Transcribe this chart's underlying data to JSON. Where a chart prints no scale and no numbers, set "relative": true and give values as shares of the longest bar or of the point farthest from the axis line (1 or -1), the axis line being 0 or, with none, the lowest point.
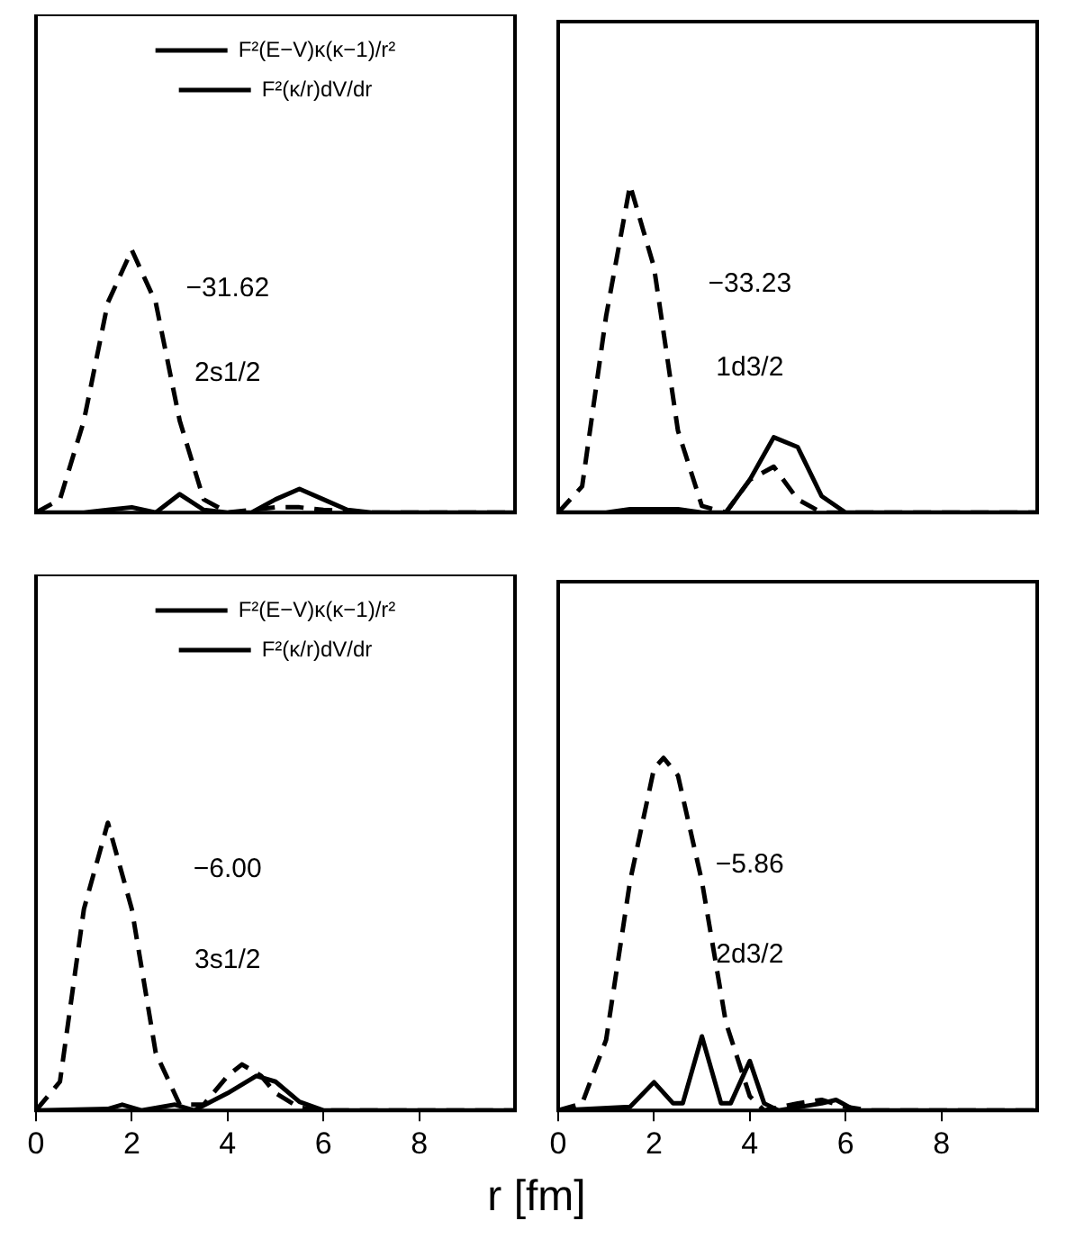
{
  "chart_data": [
    {
      "type": "line",
      "relative": true,
      "categories": [
        null,
        null,
        null,
        null,
        null,
        null,
        null,
        null,
        null,
        null,
        null,
        null,
        null,
        null,
        null,
        null,
        null,
        null,
        null,
        null,
        null
      ],
      "grid": false,
      "legend": "top",
      "marker": "none",
      "annotations": [
        "−31.62",
        "2s1/2"
      ],
      "series": [
        {
          "name": "F²(E−V)κ(κ−1)/r²",
          "color": "#000000",
          "line_style": "dashed",
          "values": [
            0,
            0.05,
            0.35,
            0.8,
            1,
            0.8,
            0.35,
            0.05,
            0,
            0.01,
            0.02,
            0.02,
            0.01,
            0.005,
            0,
            0,
            0,
            0,
            0,
            0,
            0
          ]
        },
        {
          "name": "F²(κ/r)dV/dr",
          "color": "#000000",
          "line_style": "solid",
          "values": [
            0,
            0,
            0,
            0.01,
            0.02,
            0,
            0.07,
            0.01,
            0,
            0,
            0.05,
            0.09,
            0.05,
            0.01,
            0,
            0,
            0,
            0,
            0,
            0,
            0
          ]
        }
      ]
    },
    {
      "type": "line",
      "relative": true,
      "categories": [
        null,
        null,
        null,
        null,
        null,
        null,
        null,
        null,
        null,
        null,
        null,
        null,
        null,
        null,
        null,
        null,
        null,
        null,
        null,
        null,
        null
      ],
      "grid": false,
      "legend": false,
      "marker": "none",
      "annotations": [
        "−33.23",
        "1d3/2"
      ],
      "series": [
        {
          "color": "#000000",
          "line_style": "dashed",
          "values": [
            0,
            0.08,
            0.6,
            1,
            0.75,
            0.25,
            0.02,
            0,
            0.1,
            0.14,
            0.04,
            0,
            0,
            0,
            0,
            0,
            0,
            0,
            0,
            0,
            0
          ]
        },
        {
          "color": "#000000",
          "line_style": "solid",
          "values": [
            0,
            0,
            0,
            0.01,
            0.01,
            0.01,
            0,
            0,
            0.1,
            0.23,
            0.2,
            0.05,
            0,
            0,
            0,
            0,
            0,
            0,
            0,
            0,
            0
          ]
        }
      ]
    },
    {
      "type": "line",
      "relative": true,
      "xlim": [
        0,
        10
      ],
      "xticks": [
        0,
        2,
        4,
        6,
        8
      ],
      "tick_labels": "x",
      "grid": false,
      "legend": "top",
      "marker": "none",
      "xlabel": "r  [fm]",
      "annotations": [
        "−6.00",
        "3s1/2"
      ],
      "series": [
        {
          "name": "F²(E−V)κ(κ−1)/r²",
          "color": "#000000",
          "line_style": "dashed",
          "x": [
            0,
            0.5,
            1,
            1.5,
            2,
            2.5,
            3,
            3.5,
            4,
            4.3,
            4.7,
            5,
            5.5,
            6,
            10
          ],
          "values": [
            0,
            0.1,
            0.7,
            1,
            0.7,
            0.2,
            0.02,
            0.02,
            0.12,
            0.16,
            0.12,
            0.06,
            0.01,
            0,
            0
          ]
        },
        {
          "name": "F²(κ/r)dV/dr",
          "color": "#000000",
          "line_style": "solid",
          "x": [
            0,
            1.5,
            1.8,
            2.2,
            2.9,
            3.3,
            4,
            4.6,
            5,
            5.5,
            6,
            10
          ],
          "values": [
            0,
            0.005,
            0.02,
            0,
            0.02,
            0,
            0.06,
            0.12,
            0.1,
            0.03,
            0,
            0
          ]
        }
      ]
    },
    {
      "type": "line",
      "relative": true,
      "xlim": [
        0,
        10
      ],
      "xticks": [
        0,
        2,
        4,
        6,
        8
      ],
      "tick_labels": "x",
      "grid": false,
      "legend": false,
      "marker": "none",
      "annotations": [
        "−5.86",
        "2d3/2"
      ],
      "series": [
        {
          "color": "#000000",
          "line_style": "dashed",
          "x": [
            0,
            0.5,
            1,
            1.5,
            2,
            2.2,
            2.5,
            3,
            3.5,
            4,
            4.3,
            5,
            5.5,
            6,
            6.5,
            10
          ],
          "values": [
            0,
            0.02,
            0.2,
            0.65,
            0.97,
            1,
            0.95,
            0.65,
            0.25,
            0.04,
            0,
            0.02,
            0.03,
            0.01,
            0,
            0
          ]
        },
        {
          "color": "#000000",
          "line_style": "solid",
          "x": [
            0,
            1.5,
            2,
            2.4,
            2.6,
            3,
            3.4,
            3.6,
            4,
            4.3,
            4.6,
            5.5,
            5.8,
            6.2,
            10
          ],
          "values": [
            0,
            0.01,
            0.08,
            0.02,
            0.02,
            0.21,
            0.02,
            0.02,
            0.14,
            0.02,
            0,
            0.02,
            0.03,
            0,
            0
          ]
        }
      ]
    }
  ]
}
